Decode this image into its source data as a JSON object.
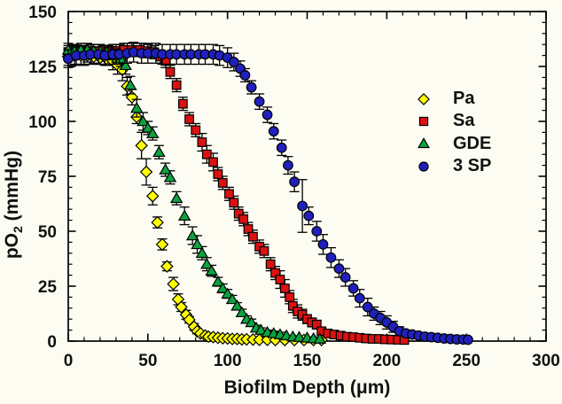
{
  "figure": {
    "background_color": "#fcfcf2",
    "axis_color": "#000000",
    "text_color": "#111111"
  },
  "chart_data": {
    "type": "scatter",
    "title": "",
    "xlabel": "Biofilm Depth (μm)",
    "ylabel": "pO2 (mmHg)",
    "ylabel_main": "pO",
    "ylabel_sub": "2",
    "ylabel_unit": " (mmHg)",
    "xlim": [
      0,
      300
    ],
    "ylim": [
      0,
      150
    ],
    "x_major_ticks": [
      0,
      50,
      100,
      150,
      200,
      250,
      300
    ],
    "x_minor_step": 10,
    "y_major_ticks": [
      0,
      25,
      50,
      75,
      100,
      125,
      150
    ],
    "y_minor_step": 5,
    "grid": false,
    "error_bars": true,
    "legend_position": "middle-right",
    "point_format": "[depth_um, po2_mmHg, error_mmHg]",
    "series": [
      {
        "id": "pa",
        "name": "Pa",
        "marker": "diamond",
        "color": "#ffff00",
        "points": [
          [
            0,
            129.5,
            4
          ],
          [
            4,
            130,
            4
          ],
          [
            8,
            130,
            4
          ],
          [
            12,
            130,
            3
          ],
          [
            16,
            129.5,
            3
          ],
          [
            20,
            129,
            3
          ],
          [
            24,
            128.5,
            3
          ],
          [
            28,
            127.5,
            4
          ],
          [
            31,
            125.5,
            4
          ],
          [
            34,
            123.5,
            5
          ],
          [
            37,
            116,
            4
          ],
          [
            40,
            111,
            3.5
          ],
          [
            43,
            102,
            3
          ],
          [
            46,
            89,
            6
          ],
          [
            49,
            77,
            6
          ],
          [
            53,
            66,
            4
          ],
          [
            56,
            54,
            2.5
          ],
          [
            59,
            44,
            2.5
          ],
          [
            62,
            34,
            2
          ],
          [
            66,
            26,
            3
          ],
          [
            69,
            19,
            2.5
          ],
          [
            71,
            15.5,
            2
          ],
          [
            74,
            12,
            2
          ],
          [
            76,
            9.7,
            1.5
          ],
          [
            79,
            6.5,
            1.5
          ],
          [
            81,
            4.5,
            1.2
          ],
          [
            83,
            3.5,
            1
          ],
          [
            86,
            2.5,
            1
          ],
          [
            88,
            2,
            1
          ],
          [
            91,
            1.8,
            0.8
          ],
          [
            94,
            1.5,
            0.8
          ],
          [
            97,
            1.3,
            0.8
          ],
          [
            100,
            1.2,
            0.8
          ],
          [
            103,
            1,
            0.8
          ],
          [
            106,
            1,
            0.8
          ],
          [
            109,
            0.8,
            0.6
          ],
          [
            112,
            0.8,
            0.6
          ],
          [
            116,
            0.7,
            0.6
          ],
          [
            120,
            0.6,
            0.6
          ],
          [
            125,
            0.6,
            0.5
          ],
          [
            130,
            0.5,
            0.5
          ],
          [
            136,
            0.5,
            0.5
          ],
          [
            142,
            0.5,
            0.5
          ],
          [
            148,
            0.5,
            0.5
          ],
          [
            154,
            0.5,
            0.5
          ],
          [
            159,
            0.5,
            0.5
          ]
        ]
      },
      {
        "id": "sa",
        "name": "Sa",
        "marker": "square",
        "color": "#dd1111",
        "points": [
          [
            0,
            131.5,
            3
          ],
          [
            5,
            131.5,
            3
          ],
          [
            10,
            131.5,
            3
          ],
          [
            15,
            132,
            3
          ],
          [
            20,
            132,
            3
          ],
          [
            25,
            131.5,
            3
          ],
          [
            30,
            132,
            3
          ],
          [
            35,
            132.5,
            3
          ],
          [
            40,
            132.5,
            3
          ],
          [
            45,
            132.5,
            3
          ],
          [
            50,
            132,
            3
          ],
          [
            54,
            131.5,
            3
          ],
          [
            58,
            129.5,
            3
          ],
          [
            61,
            127.5,
            3
          ],
          [
            64,
            122.5,
            3
          ],
          [
            68,
            116.5,
            3
          ],
          [
            72,
            108,
            3
          ],
          [
            76,
            101,
            3
          ],
          [
            80,
            96,
            3
          ],
          [
            84,
            90.5,
            4
          ],
          [
            87,
            85,
            4
          ],
          [
            91,
            81.5,
            4
          ],
          [
            94,
            76,
            3
          ],
          [
            97,
            72,
            3
          ],
          [
            101,
            67,
            3
          ],
          [
            104,
            63,
            3
          ],
          [
            107,
            58,
            3
          ],
          [
            110,
            55.5,
            3
          ],
          [
            113,
            51,
            3
          ],
          [
            116,
            47.5,
            3
          ],
          [
            120,
            43,
            3
          ],
          [
            123,
            41,
            3
          ],
          [
            127,
            35,
            3
          ],
          [
            130,
            31,
            3
          ],
          [
            133,
            28,
            4
          ],
          [
            136,
            24,
            4
          ],
          [
            139,
            20,
            3
          ],
          [
            141,
            16,
            3
          ],
          [
            144,
            13.5,
            3
          ],
          [
            147,
            12,
            2.5
          ],
          [
            150,
            10,
            2
          ],
          [
            153,
            8.5,
            2
          ],
          [
            156,
            7.5,
            2
          ],
          [
            159,
            4.5,
            1.5
          ],
          [
            163,
            3.5,
            1
          ],
          [
            167,
            3,
            1
          ],
          [
            171,
            2.5,
            1
          ],
          [
            175,
            2,
            1
          ],
          [
            179,
            1.8,
            0.8
          ],
          [
            183,
            1.5,
            0.8
          ],
          [
            187,
            1.2,
            0.8
          ],
          [
            191,
            1,
            0.8
          ],
          [
            195,
            1,
            0.8
          ],
          [
            199,
            0.8,
            0.6
          ],
          [
            203,
            0.7,
            0.6
          ],
          [
            207,
            0.6,
            0.6
          ],
          [
            211,
            0.5,
            0.6
          ]
        ]
      },
      {
        "id": "gde",
        "name": "GDE",
        "marker": "triangle",
        "color": "#0ba33f",
        "points": [
          [
            0,
            132.5,
            3
          ],
          [
            4,
            132,
            3
          ],
          [
            8,
            132.5,
            3
          ],
          [
            12,
            132.5,
            3
          ],
          [
            16,
            132,
            3
          ],
          [
            20,
            132,
            3
          ],
          [
            24,
            131.5,
            3
          ],
          [
            27,
            131,
            3
          ],
          [
            30,
            130,
            3
          ],
          [
            33,
            128.5,
            3.5
          ],
          [
            36,
            125.5,
            4
          ],
          [
            39,
            116.5,
            4
          ],
          [
            43,
            106,
            4
          ],
          [
            47,
            100,
            4
          ],
          [
            50,
            97,
            3
          ],
          [
            53,
            94.5,
            3
          ],
          [
            57,
            86,
            3
          ],
          [
            61,
            78,
            3
          ],
          [
            64,
            74.5,
            3
          ],
          [
            68,
            65,
            3
          ],
          [
            73,
            57,
            4
          ],
          [
            78,
            48,
            4
          ],
          [
            81,
            44,
            4
          ],
          [
            84,
            40,
            3
          ],
          [
            87,
            35,
            3
          ],
          [
            90,
            32,
            2.5
          ],
          [
            94,
            27,
            2
          ],
          [
            97,
            24,
            2
          ],
          [
            100,
            21.5,
            2
          ],
          [
            103,
            19,
            1.8
          ],
          [
            106,
            16,
            1.5
          ],
          [
            109,
            13,
            1.5
          ],
          [
            112,
            10,
            1.5
          ],
          [
            115,
            8.5,
            1.5
          ],
          [
            118,
            6,
            1.2
          ],
          [
            121,
            5,
            1
          ],
          [
            125,
            4,
            1
          ],
          [
            129,
            3.5,
            1
          ],
          [
            133,
            3,
            1
          ],
          [
            137,
            2.5,
            0.8
          ],
          [
            141,
            2,
            0.8
          ],
          [
            145,
            1.8,
            0.8
          ],
          [
            150,
            1.5,
            0.8
          ],
          [
            154,
            1.2,
            0.8
          ],
          [
            158,
            1,
            0.8
          ]
        ]
      },
      {
        "id": "3sp",
        "name": "3 SP",
        "marker": "circle",
        "color": "#2020bd",
        "points": [
          [
            0,
            128.5,
            4
          ],
          [
            5,
            130,
            4.5
          ],
          [
            10,
            130,
            4.5
          ],
          [
            14,
            130.5,
            4.5
          ],
          [
            19,
            130.5,
            4.5
          ],
          [
            23,
            130,
            4.5
          ],
          [
            28,
            130.5,
            4.5
          ],
          [
            32,
            130.5,
            4.5
          ],
          [
            37,
            131,
            4.5
          ],
          [
            41,
            131.5,
            4.5
          ],
          [
            46,
            131,
            4.5
          ],
          [
            50,
            131,
            4.5
          ],
          [
            55,
            131,
            4.5
          ],
          [
            59,
            130.5,
            4.5
          ],
          [
            64,
            130.5,
            4.5
          ],
          [
            68,
            130.5,
            4.5
          ],
          [
            73,
            130.5,
            4.5
          ],
          [
            77,
            130.5,
            4.5
          ],
          [
            82,
            130.5,
            4.5
          ],
          [
            86,
            130.5,
            4.5
          ],
          [
            91,
            130.5,
            4.5
          ],
          [
            95,
            130,
            4.5
          ],
          [
            100,
            129,
            4.5
          ],
          [
            104,
            127,
            4
          ],
          [
            108,
            124,
            3.5
          ],
          [
            111,
            121,
            3
          ],
          [
            115,
            115.5,
            3
          ],
          [
            120,
            109,
            3.5
          ],
          [
            125,
            103,
            3.5
          ],
          [
            129,
            95.5,
            3.5
          ],
          [
            134,
            88,
            3.5
          ],
          [
            138,
            80,
            4
          ],
          [
            142,
            72.5,
            4.5
          ],
          [
            147,
            61.5,
            12
          ],
          [
            151,
            57,
            4
          ],
          [
            156,
            50,
            4.5
          ],
          [
            160,
            44,
            4.5
          ],
          [
            165,
            38,
            4.5
          ],
          [
            170,
            33,
            4
          ],
          [
            174,
            29,
            4
          ],
          [
            179,
            24,
            3.5
          ],
          [
            183,
            19.5,
            4
          ],
          [
            188,
            15.5,
            4
          ],
          [
            192,
            12.5,
            3
          ],
          [
            196,
            10.5,
            3
          ],
          [
            200,
            8.5,
            3
          ],
          [
            204,
            6.5,
            2.5
          ],
          [
            208,
            4.5,
            2
          ],
          [
            212,
            3.5,
            1.5
          ],
          [
            216,
            3,
            1
          ],
          [
            220,
            2.5,
            1
          ],
          [
            224,
            2,
            1
          ],
          [
            228,
            1.8,
            1
          ],
          [
            232,
            1.5,
            0.8
          ],
          [
            236,
            1.2,
            0.8
          ],
          [
            240,
            1,
            0.8
          ],
          [
            244,
            0.8,
            0.6
          ],
          [
            248,
            0.7,
            0.6
          ],
          [
            251,
            0.6,
            0.6
          ]
        ]
      }
    ]
  }
}
